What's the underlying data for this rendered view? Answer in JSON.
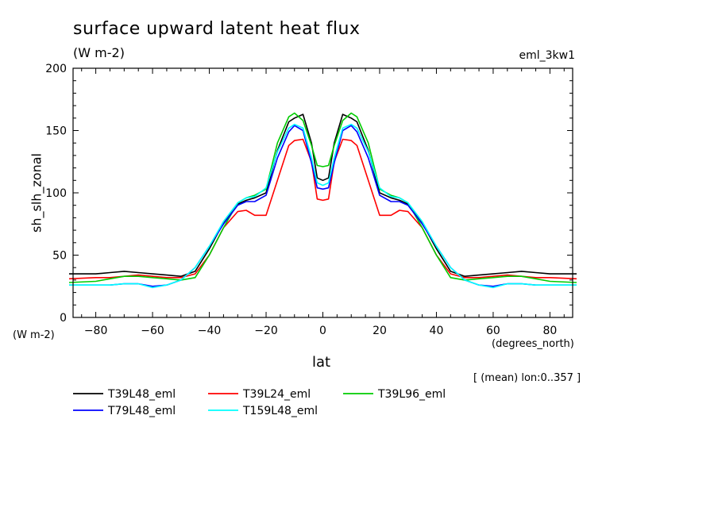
{
  "chart_data": {
    "type": "line",
    "title": "surface upward latent heat flux",
    "units_label": "(W m-2)",
    "experiment": "eml_3kw1",
    "ylabel": "sh_slh_zonal",
    "y_units": "(W m-2)",
    "xlabel": "lat",
    "x_units": "(degrees_north)",
    "note": "[ (mean) lon:0..357 ]",
    "xlim": [
      -88,
      88
    ],
    "ylim": [
      0,
      200
    ],
    "x_ticks": [
      -80,
      -60,
      -40,
      -20,
      0,
      20,
      40,
      60,
      80
    ],
    "x_tick_labels": [
      "−80",
      "−60",
      "−40",
      "−20",
      "0",
      "20",
      "40",
      "60",
      "80"
    ],
    "y_ticks": [
      0,
      50,
      100,
      150,
      200
    ],
    "y_tick_labels": [
      "0",
      "50",
      "100",
      "150",
      "200"
    ],
    "legend_placement": "bottom",
    "grid": false,
    "series": [
      {
        "name": "T39L48_eml",
        "color": "#000000",
        "x": [
          -88,
          -80,
          -75,
          -70,
          -65,
          -60,
          -55,
          -50,
          -45,
          -40,
          -35,
          -30,
          -27,
          -24,
          -20,
          -16,
          -12,
          -10,
          -7,
          -4,
          -2,
          0,
          2,
          4,
          7,
          10,
          12,
          16,
          20,
          24,
          27,
          30,
          35,
          40,
          45,
          50,
          55,
          60,
          65,
          70,
          75,
          80,
          88
        ],
        "y": [
          35,
          35,
          36,
          37,
          36,
          35,
          34,
          33,
          37,
          55,
          76,
          91,
          94,
          96,
          100,
          134,
          157,
          160,
          163,
          140,
          112,
          110,
          112,
          140,
          163,
          160,
          157,
          134,
          100,
          96,
          94,
          91,
          76,
          55,
          37,
          33,
          34,
          35,
          36,
          37,
          36,
          35,
          35
        ]
      },
      {
        "name": "T39L24_eml",
        "color": "#ff0000",
        "x": [
          -88,
          -80,
          -75,
          -70,
          -65,
          -60,
          -55,
          -50,
          -45,
          -40,
          -35,
          -30,
          -27,
          -24,
          -20,
          -16,
          -12,
          -10,
          -7,
          -4,
          -2,
          0,
          2,
          4,
          7,
          10,
          12,
          16,
          20,
          24,
          27,
          30,
          35,
          40,
          45,
          50,
          55,
          60,
          65,
          70,
          75,
          80,
          88
        ],
        "y": [
          31,
          32,
          32,
          33,
          34,
          33,
          32,
          32,
          35,
          50,
          72,
          85,
          86,
          82,
          82,
          110,
          138,
          142,
          143,
          125,
          95,
          94,
          95,
          125,
          143,
          142,
          138,
          110,
          82,
          82,
          86,
          85,
          72,
          50,
          35,
          32,
          32,
          33,
          34,
          33,
          32,
          32,
          31
        ]
      },
      {
        "name": "T39L96_eml",
        "color": "#00cc00",
        "x": [
          -88,
          -80,
          -75,
          -70,
          -65,
          -60,
          -55,
          -50,
          -45,
          -40,
          -35,
          -30,
          -27,
          -24,
          -20,
          -16,
          -12,
          -10,
          -7,
          -4,
          -2,
          0,
          2,
          4,
          7,
          10,
          12,
          16,
          20,
          24,
          27,
          30,
          35,
          40,
          45,
          50,
          55,
          60,
          65,
          70,
          75,
          80,
          88
        ],
        "y": [
          28,
          29,
          31,
          33,
          33,
          32,
          31,
          30,
          32,
          50,
          72,
          92,
          96,
          98,
          103,
          140,
          161,
          164,
          158,
          138,
          122,
          121,
          122,
          138,
          158,
          164,
          161,
          140,
          103,
          98,
          96,
          92,
          72,
          50,
          32,
          30,
          31,
          32,
          33,
          33,
          31,
          29,
          28
        ]
      },
      {
        "name": "T79L48_eml",
        "color": "#0000ff",
        "x": [
          -88,
          -80,
          -75,
          -70,
          -65,
          -60,
          -55,
          -50,
          -45,
          -40,
          -35,
          -30,
          -27,
          -24,
          -20,
          -16,
          -12,
          -10,
          -7,
          -4,
          -2,
          0,
          2,
          4,
          7,
          10,
          12,
          16,
          20,
          24,
          27,
          30,
          35,
          40,
          45,
          50,
          55,
          60,
          65,
          70,
          75,
          80,
          88
        ],
        "y": [
          26,
          26,
          26,
          27,
          27,
          25,
          26,
          30,
          40,
          57,
          75,
          90,
          93,
          93,
          98,
          128,
          149,
          154,
          150,
          124,
          104,
          103,
          104,
          124,
          150,
          154,
          149,
          128,
          98,
          93,
          93,
          90,
          75,
          57,
          40,
          30,
          26,
          25,
          27,
          27,
          26,
          26,
          26
        ]
      },
      {
        "name": "T159L48_eml",
        "color": "#00ffff",
        "x": [
          -88,
          -80,
          -75,
          -70,
          -65,
          -60,
          -55,
          -50,
          -45,
          -40,
          -35,
          -30,
          -27,
          -24,
          -20,
          -16,
          -12,
          -10,
          -7,
          -4,
          -2,
          0,
          2,
          4,
          7,
          10,
          12,
          16,
          20,
          24,
          27,
          30,
          35,
          40,
          45,
          50,
          55,
          60,
          65,
          70,
          75,
          80,
          88
        ],
        "y": [
          26,
          26,
          26,
          27,
          27,
          24,
          26,
          30,
          40,
          57,
          77,
          92,
          96,
          97,
          104,
          133,
          152,
          155,
          152,
          128,
          108,
          106,
          108,
          128,
          152,
          155,
          152,
          133,
          104,
          97,
          96,
          92,
          77,
          57,
          40,
          30,
          26,
          24,
          27,
          27,
          26,
          26,
          26
        ]
      }
    ]
  }
}
